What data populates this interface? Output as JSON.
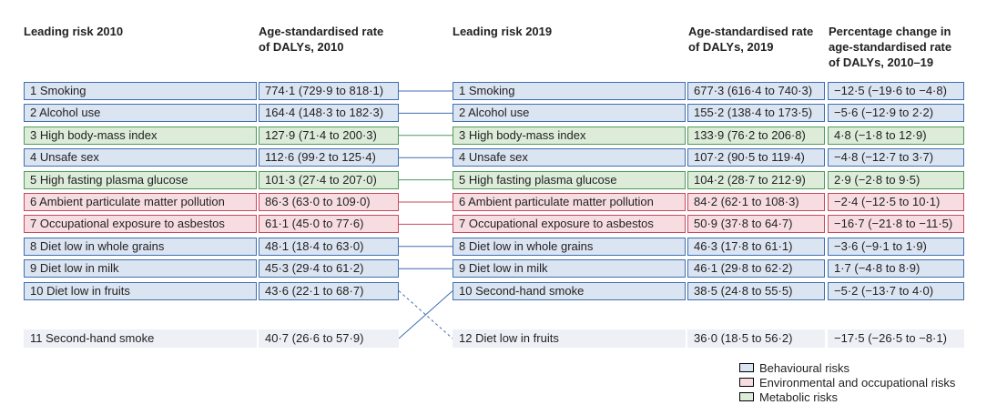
{
  "headers": {
    "risk_2010": "Leading risk 2010",
    "rate_2010": [
      "Age-standardised rate",
      "of DALYs, 2010"
    ],
    "risk_2019": "Leading risk 2019",
    "rate_2019": [
      "Age-standardised rate",
      "of DALYs, 2019"
    ],
    "change": [
      "Percentage change in",
      "age-standardised rate",
      "of DALYs, 2010–19"
    ]
  },
  "colors": {
    "behavioural": "#3f6fb0",
    "environmental": "#c9475c",
    "metabolic": "#4e9a5c"
  },
  "rows_2010": [
    {
      "label": "1 Smoking",
      "rate": "774·1 (729·9 to 818·1)",
      "category": "behavioural"
    },
    {
      "label": "2 Alcohol use",
      "rate": "164·4 (148·3 to 182·3)",
      "category": "behavioural"
    },
    {
      "label": "3 High body-mass index",
      "rate": "127·9 (71·4 to 200·3)",
      "category": "metabolic"
    },
    {
      "label": "4 Unsafe sex",
      "rate": "112·6 (99·2 to 125·4)",
      "category": "behavioural"
    },
    {
      "label": "5 High fasting plasma glucose",
      "rate": "101·3 (27·4 to 207·0)",
      "category": "metabolic"
    },
    {
      "label": "6 Ambient particulate matter pollution",
      "rate": "86·3 (63·0 to 109·0)",
      "category": "environmental"
    },
    {
      "label": "7 Occupational exposure to asbestos",
      "rate": "61·1 (45·0 to 77·6)",
      "category": "environmental"
    },
    {
      "label": "8 Diet low in whole grains",
      "rate": "48·1 (18·4 to 63·0)",
      "category": "behavioural"
    },
    {
      "label": "9 Diet low in milk",
      "rate": "45·3 (29·4 to 61·2)",
      "category": "behavioural"
    },
    {
      "label": "10 Diet low in fruits",
      "rate": "43·6 (22·1 to 68·7)",
      "category": "behavioural"
    },
    {
      "label": "11 Second-hand smoke",
      "rate": "40·7 (26·6 to 57·9)",
      "category": "none"
    }
  ],
  "rows_2019": [
    {
      "label": "1 Smoking",
      "rate": "677·3 (616·4 to 740·3)",
      "change": "−12·5 (−19·6 to −4·8)",
      "category": "behavioural"
    },
    {
      "label": "2 Alcohol use",
      "rate": "155·2 (138·4 to 173·5)",
      "change": "−5·6 (−12·9 to 2·2)",
      "category": "behavioural"
    },
    {
      "label": "3 High body-mass index",
      "rate": "133·9 (76·2 to 206·8)",
      "change": "4·8 (−1·8 to 12·9)",
      "category": "metabolic"
    },
    {
      "label": "4 Unsafe sex",
      "rate": "107·2 (90·5 to 119·4)",
      "change": "−4·8 (−12·7 to 3·7)",
      "category": "behavioural"
    },
    {
      "label": "5 High fasting plasma glucose",
      "rate": "104·2 (28·7 to 212·9)",
      "change": "2·9 (−2·8 to 9·5)",
      "category": "metabolic"
    },
    {
      "label": "6 Ambient particulate matter pollution",
      "rate": "84·2 (62·1 to 108·3)",
      "change": "−2·4 (−12·5 to 10·1)",
      "category": "environmental"
    },
    {
      "label": "7 Occupational exposure to asbestos",
      "rate": "50·9 (37·8 to 64·7)",
      "change": "−16·7 (−21·8 to −11·5)",
      "category": "environmental"
    },
    {
      "label": "8 Diet low in whole grains",
      "rate": "46·3 (17·8 to 61·1)",
      "change": "−3·6 (−9·1 to 1·9)",
      "category": "behavioural"
    },
    {
      "label": "9 Diet low in milk",
      "rate": "46·1 (29·8 to 62·2)",
      "change": "1·7 (−4·8 to 8·9)",
      "category": "behavioural"
    },
    {
      "label": "10 Second-hand smoke",
      "rate": "38·5 (24·8 to 55·5)",
      "change": "−5·2 (−13·7 to 4·0)",
      "category": "behavioural"
    },
    {
      "label": "12 Diet low in fruits",
      "rate": "36·0 (18·5 to 56·2)",
      "change": "−17·5 (−26·5 to −8·1)",
      "category": "none"
    }
  ],
  "legend": [
    {
      "label": "Behavioural risks",
      "category": "behavioural"
    },
    {
      "label": "Environmental and occupational risks",
      "category": "environmental"
    },
    {
      "label": "Metabolic risks",
      "category": "metabolic"
    }
  ]
}
